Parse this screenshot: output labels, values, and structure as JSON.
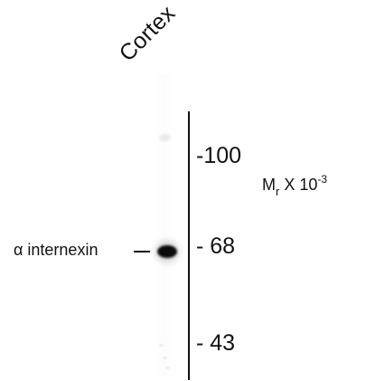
{
  "lane_label": "Cortex",
  "molecular_weight_markers": [
    {
      "label": "-100",
      "value": 100
    },
    {
      "label": "- 68",
      "value": 68
    },
    {
      "label": "- 43",
      "value": 43
    }
  ],
  "unit_label": {
    "main": "M",
    "sub": "r",
    "mid": " X 10",
    "sup": "-3"
  },
  "protein_label": "α internexin",
  "colors": {
    "background": "#ffffff",
    "ink": "#111111",
    "band": "#000000"
  }
}
